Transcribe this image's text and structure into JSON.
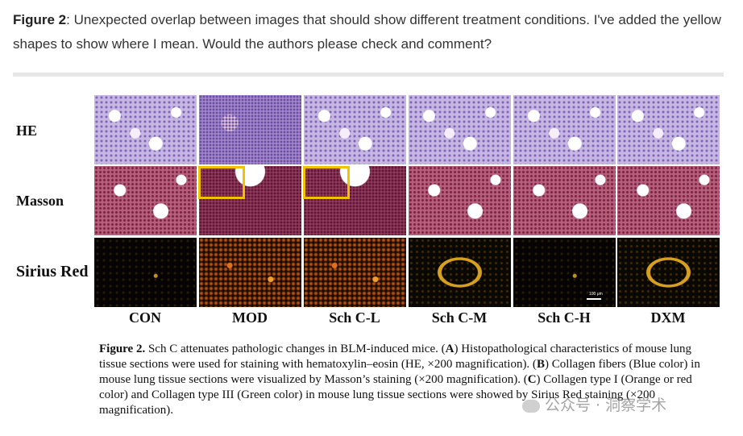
{
  "comment": {
    "label": "Figure 2",
    "text": ": Unexpected overlap between images that should show different treatment conditions. I've added the yellow shapes to show where I mean. Would the authors please check and comment?"
  },
  "figure": {
    "rows": [
      "HE",
      "Masson",
      "Sirius Red"
    ],
    "columns": [
      "CON",
      "MOD",
      "Sch C-L",
      "Sch C-M",
      "Sch C-H",
      "DXM"
    ],
    "scale_bar": "100 μm"
  },
  "caption": {
    "title": "Figure 2.",
    "p1": "  Sch C attenuates pathologic changes in BLM-induced mice. (",
    "A": "A",
    "p2": ") Histopathological characteristics of mouse lung tissue sections were used for staining with hematoxylin–eosin (HE, ×200 magnification). (",
    "B": "B",
    "p3": ") Collagen fibers (Blue color) in mouse lung tissue sections were visualized by Masson’s staining (×200 magnification). (",
    "C": "C",
    "p4": ") Collagen type I (Orange or red color) and Collagen type III (Green color) in mouse lung tissue sections were showed by Sirius Red staining (×200 magnification)."
  },
  "watermark": "公众号 · 洞察学术",
  "colors": {
    "highlight": "#f2c200",
    "rule": "#e6e6e6"
  }
}
